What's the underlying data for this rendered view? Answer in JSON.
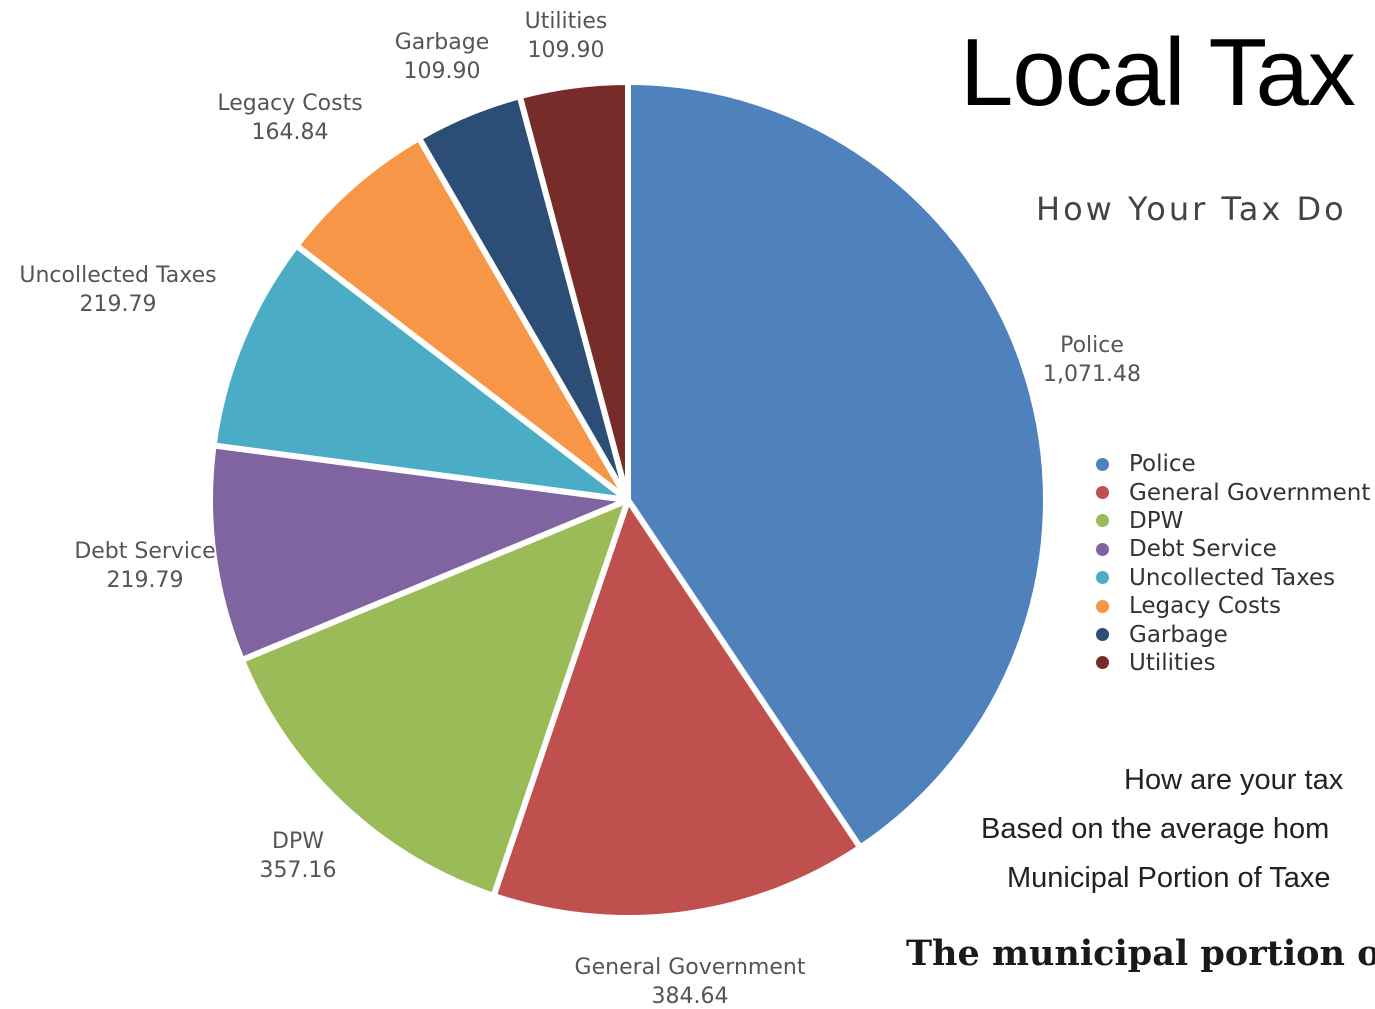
{
  "title": "Local Tax",
  "subtitle": "How Your Tax Do",
  "notes": {
    "line1": "How are your tax",
    "line2": "Based on the average hom",
    "line3": "Municipal Portion of Taxe",
    "bold": "The municipal portion o"
  },
  "chart_data": {
    "type": "pie",
    "categories": [
      "Police",
      "General Government",
      "DPW",
      "Debt Service",
      "Uncollected Taxes",
      "Legacy Costs",
      "Garbage",
      "Utilities"
    ],
    "values": [
      1071.48,
      384.64,
      357.16,
      219.79,
      219.79,
      164.84,
      109.9,
      109.9
    ],
    "value_labels": [
      "1,071.48",
      "384.64",
      "357.16",
      "219.79",
      "219.79",
      "164.84",
      "109.90",
      "109.90"
    ],
    "colors": [
      "#4f81bd",
      "#c0504d",
      "#9bbb59",
      "#8064a2",
      "#4bacc6",
      "#f79646",
      "#2c4d75",
      "#772c2a"
    ],
    "start_angle": "12 o'clock, clockwise",
    "legend_position": "right"
  }
}
